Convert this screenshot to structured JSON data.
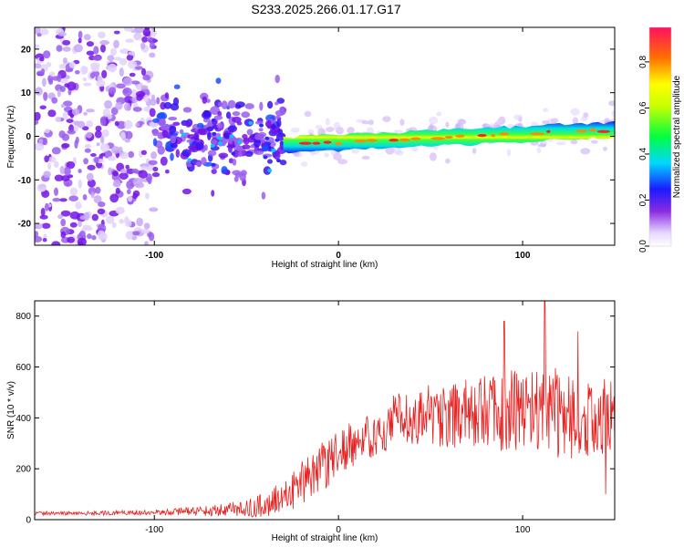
{
  "title": "S233.2025.266.01.17.G17",
  "colors": {
    "snr_line": "#e82020",
    "axis": "#000000",
    "scatter_main": "#6e10e0",
    "scatter_faint": "#d8c4f8"
  },
  "chart_data": [
    {
      "type": "heatmap",
      "name": "spectrogram",
      "xlabel": "Height of straight line (km)",
      "ylabel": "Frequency (Hz)",
      "xlim": [
        -165,
        150
      ],
      "ylim": [
        -25,
        25
      ],
      "xticks": [
        -100,
        0,
        100
      ],
      "yticks": [
        -20,
        -10,
        0,
        10,
        20
      ],
      "colorbar": {
        "label": "Normalized spectral amplitude",
        "range": [
          0,
          0.95
        ],
        "ticks": [
          "0.0",
          "0.2",
          "0.4",
          "0.6",
          "0.8"
        ],
        "tick_values": [
          0.0,
          0.2,
          0.4,
          0.6,
          0.8
        ]
      },
      "ridge": {
        "x_start": -30,
        "x_end": 150,
        "freq_start": -2.0,
        "freq_end": 1.5
      },
      "scatter_regions": [
        {
          "x_range": [
            -165,
            -100
          ],
          "freq_range": [
            -25,
            25
          ],
          "amplitude_range": [
            0.02,
            0.3
          ],
          "count": 420
        },
        {
          "x_range": [
            -100,
            -30
          ],
          "freq_range": [
            -10,
            12
          ],
          "amplitude_range": [
            0.1,
            0.45
          ],
          "count": 260
        },
        {
          "x_range": [
            -30,
            150
          ],
          "freq_range": [
            -6,
            6
          ],
          "amplitude_range": [
            0.02,
            0.1
          ],
          "count": 180
        }
      ]
    },
    {
      "type": "line",
      "name": "snr",
      "xlabel": "Height of straight line (km)",
      "ylabel": "SNR (10 * v/v)",
      "xlim": [
        -165,
        150
      ],
      "ylim": [
        0,
        860
      ],
      "xticks": [
        -100,
        0,
        100
      ],
      "yticks": [
        0,
        200,
        400,
        600,
        800
      ],
      "envelope": {
        "x": [
          -165,
          -140,
          -110,
          -90,
          -70,
          -50,
          -40,
          -30,
          -20,
          -10,
          0,
          10,
          20,
          30,
          40,
          60,
          80,
          100,
          110,
          120,
          130,
          150
        ],
        "mean": [
          25,
          25,
          28,
          30,
          35,
          45,
          60,
          90,
          140,
          200,
          260,
          310,
          340,
          380,
          400,
          410,
          420,
          440,
          430,
          420,
          400,
          400
        ],
        "spread": [
          8,
          8,
          10,
          14,
          20,
          35,
          50,
          70,
          90,
          100,
          90,
          90,
          90,
          110,
          120,
          130,
          150,
          170,
          180,
          180,
          160,
          150
        ]
      },
      "peaks": [
        {
          "x": 112,
          "y": 860
        },
        {
          "x": 90,
          "y": 780
        },
        {
          "x": 130,
          "y": 740
        },
        {
          "x": 145,
          "y": 100
        }
      ]
    }
  ]
}
